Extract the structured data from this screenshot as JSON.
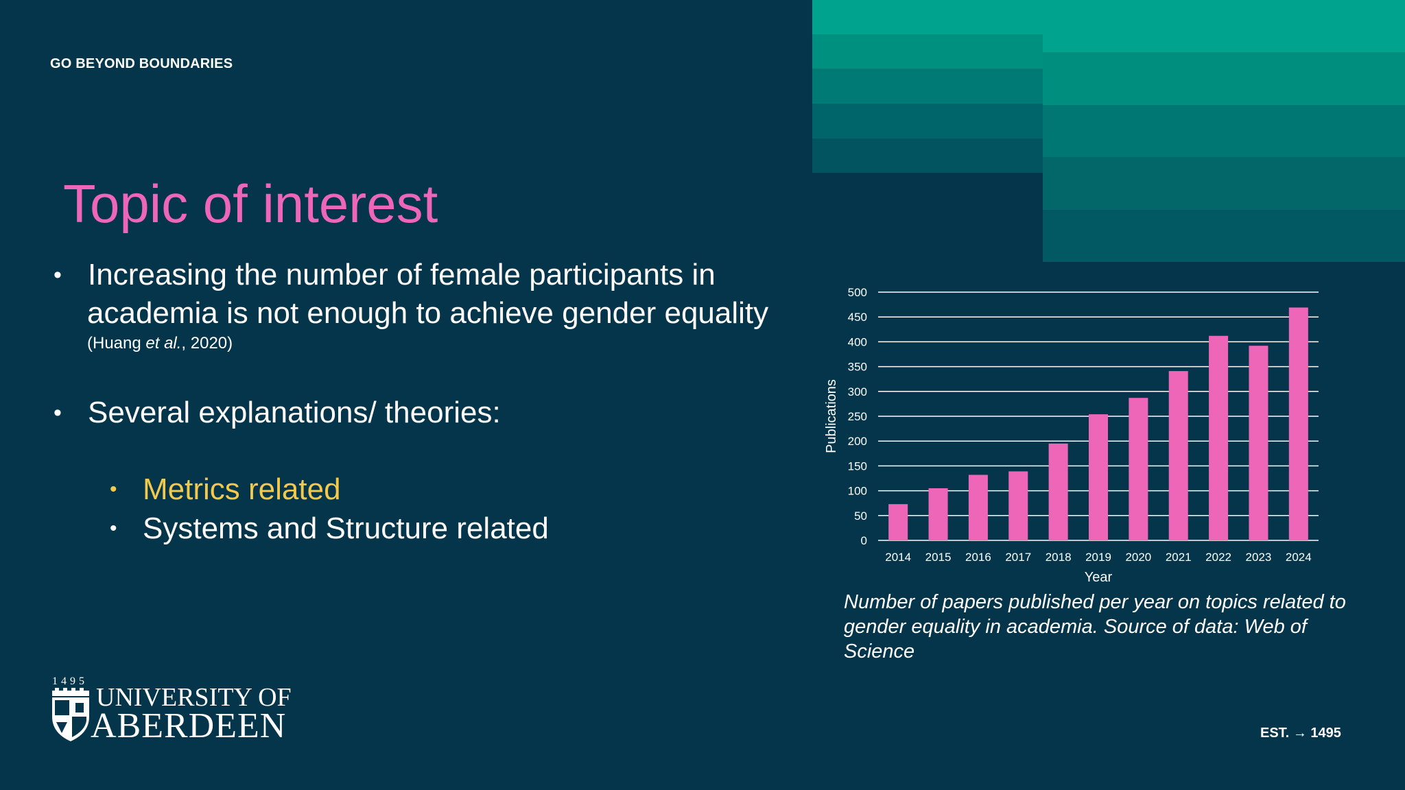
{
  "slide": {
    "tagline": "GO BEYOND BOUNDARIES",
    "title": "Topic of interest",
    "bullet1_line1": "Increasing the number of female participants in",
    "bullet1_line2": "academia is not enough to achieve gender equality",
    "citation_pre": "(Huang ",
    "citation_em": "et al.",
    "citation_post": ", 2020)",
    "bullet2": "Several explanations/ theories:",
    "sub1": "Metrics related",
    "sub2": "Systems and Structure related",
    "caption": "Number of papers published per year on topics related to gender equality in academia. Source of data: Web of Science",
    "logo_year": "1495",
    "logo_line1": "UNIVERSITY OF",
    "logo_line2": "ABERDEEN",
    "est_label": "EST.",
    "est_arrow": "→",
    "est_year": "1495",
    "bullet_glyph": "•"
  },
  "colors": {
    "background": "#04354a",
    "title": "#ee66b8",
    "bar": "#ee66b8",
    "highlight": "#f2c94c",
    "deco_teal": "#00a38e"
  },
  "chart_data": {
    "type": "bar",
    "categories": [
      "2014",
      "2015",
      "2016",
      "2017",
      "2018",
      "2019",
      "2020",
      "2021",
      "2022",
      "2023",
      "2024"
    ],
    "values": [
      73,
      105,
      132,
      139,
      195,
      254,
      287,
      341,
      412,
      392,
      469
    ],
    "title": "",
    "xlabel": "Year",
    "ylabel": "Publications",
    "ylim": [
      0,
      500
    ],
    "yticks": [
      0,
      50,
      100,
      150,
      200,
      250,
      300,
      350,
      400,
      450,
      500
    ],
    "grid": true,
    "legend": "none"
  }
}
